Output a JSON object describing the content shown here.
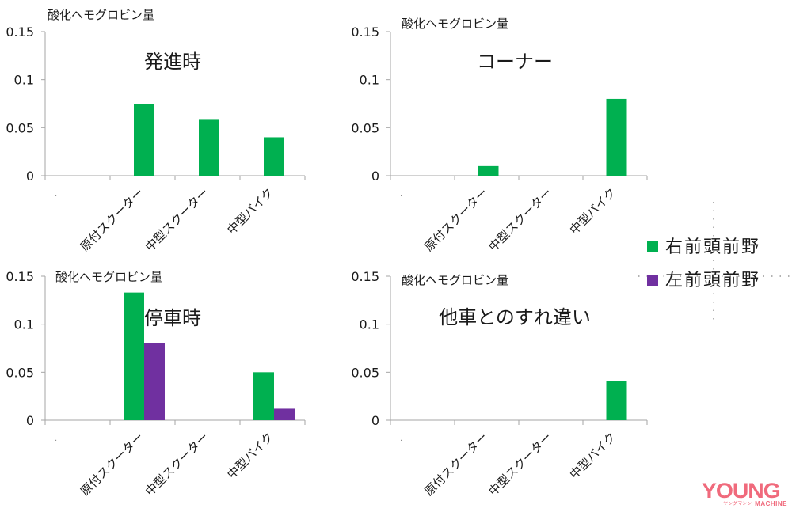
{
  "shared": {
    "ylabel": "酸化ヘモグロビン量",
    "yticks": [
      "0.15",
      "0.1",
      "0.05",
      "0"
    ],
    "ylim": [
      0,
      0.15
    ],
    "categories": [
      "",
      "原付スクーター",
      "中型スクーター",
      "中型バイク"
    ],
    "blank_category_marker": "."
  },
  "colors": {
    "right_prefrontal": "#00B050",
    "left_prefrontal": "#7030A0",
    "axis": "#a6a6a6",
    "text": "#1a1a1a"
  },
  "legend": {
    "items": [
      {
        "label": "右前頭前野",
        "color": "#00B050"
      },
      {
        "label": "左前頭前野",
        "color": "#7030A0"
      }
    ]
  },
  "logo": {
    "main": "YOUNG",
    "kana": "ヤングマシン",
    "sub": "MACHINE"
  },
  "chart_data": [
    {
      "type": "bar",
      "title": "発進時",
      "ylabel": "酸化ヘモグロビン量",
      "xlabel": "",
      "categories": [
        "原付スクーター",
        "中型スクーター",
        "中型バイク"
      ],
      "series": [
        {
          "name": "右前頭前野",
          "values": [
            0.075,
            0.059,
            0.04
          ]
        }
      ],
      "ylim": [
        0,
        0.15
      ],
      "yticks": [
        0,
        0.05,
        0.1,
        0.15
      ],
      "grid": false,
      "legend": "shared, right"
    },
    {
      "type": "bar",
      "title": "コーナー",
      "ylabel": "酸化ヘモグロビン量",
      "xlabel": "",
      "categories": [
        "原付スクーター",
        "中型スクーター",
        "中型バイク"
      ],
      "series": [
        {
          "name": "右前頭前野",
          "values": [
            0.01,
            0,
            0.08
          ]
        }
      ],
      "ylim": [
        0,
        0.15
      ],
      "yticks": [
        0,
        0.05,
        0.1,
        0.15
      ],
      "grid": false,
      "legend": "shared, right"
    },
    {
      "type": "bar",
      "title": "停車時",
      "ylabel": "酸化ヘモグロビン量",
      "xlabel": "",
      "categories": [
        "原付スクーター",
        "中型スクーター",
        "中型バイク"
      ],
      "series": [
        {
          "name": "右前頭前野",
          "values": [
            0.133,
            0,
            0.05
          ]
        },
        {
          "name": "左前頭前野",
          "values": [
            0.08,
            0,
            0.012
          ]
        }
      ],
      "ylim": [
        0,
        0.15
      ],
      "yticks": [
        0,
        0.05,
        0.1,
        0.15
      ],
      "grid": false,
      "legend": "shared, right"
    },
    {
      "type": "bar",
      "title": "他車とのすれ違い",
      "ylabel": "酸化ヘモグロビン量",
      "xlabel": "",
      "categories": [
        "原付スクーター",
        "中型スクーター",
        "中型バイク"
      ],
      "series": [
        {
          "name": "右前頭前野",
          "values": [
            0,
            0,
            0.041
          ]
        }
      ],
      "ylim": [
        0,
        0.15
      ],
      "yticks": [
        0,
        0.05,
        0.1,
        0.15
      ],
      "grid": false,
      "legend": "shared, right"
    }
  ]
}
